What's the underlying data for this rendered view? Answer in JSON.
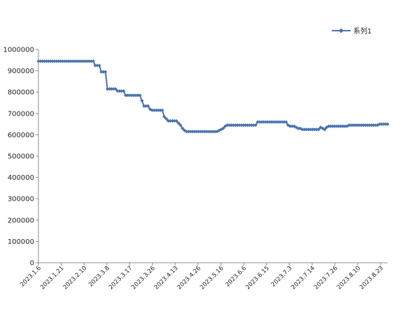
{
  "chart_data": {
    "type": "line",
    "title": "",
    "xlabel": "",
    "ylabel": "",
    "ylim": [
      0,
      1000000
    ],
    "yticks": [
      0,
      100000,
      200000,
      300000,
      400000,
      500000,
      600000,
      700000,
      800000,
      900000,
      1000000
    ],
    "ytick_labels": [
      "0",
      "100000",
      "200000",
      "300000",
      "400000",
      "500000",
      "600000",
      "700000",
      "800000",
      "900000",
      "1000000"
    ],
    "xtick_labels": [
      "2023.1.6",
      "2023.1.21",
      "2023.2.10",
      "2023.3.8",
      "2023.3.17",
      "2023.3.26",
      "2023.4.13",
      "2023.4.26",
      "2023.5.16",
      "2023.6.6",
      "2023.6.15",
      "2023.7.3",
      "2023.7.14",
      "2023.7.26",
      "2023.8.10",
      "2023.8.23"
    ],
    "grid": false,
    "legend_position": "top-right",
    "color": "#4a72b0",
    "series": [
      {
        "name": "系列1",
        "values": [
          945000,
          945000,
          945000,
          945000,
          945000,
          945000,
          945000,
          945000,
          945000,
          945000,
          945000,
          945000,
          945000,
          945000,
          945000,
          945000,
          945000,
          945000,
          945000,
          945000,
          945000,
          945000,
          945000,
          945000,
          945000,
          945000,
          945000,
          945000,
          925000,
          925000,
          925000,
          895000,
          895000,
          895000,
          815000,
          815000,
          815000,
          815000,
          815000,
          805000,
          805000,
          805000,
          805000,
          785000,
          785000,
          785000,
          785000,
          785000,
          785000,
          785000,
          785000,
          760000,
          735000,
          735000,
          735000,
          720000,
          715000,
          715000,
          715000,
          715000,
          715000,
          715000,
          685000,
          675000,
          665000,
          665000,
          665000,
          665000,
          665000,
          655000,
          645000,
          630000,
          620000,
          615000,
          615000,
          615000,
          615000,
          615000,
          615000,
          615000,
          615000,
          615000,
          615000,
          615000,
          615000,
          615000,
          615000,
          615000,
          615000,
          620000,
          625000,
          630000,
          640000,
          645000,
          645000,
          645000,
          645000,
          645000,
          645000,
          645000,
          645000,
          645000,
          645000,
          645000,
          645000,
          645000,
          645000,
          645000,
          660000,
          660000,
          660000,
          660000,
          660000,
          660000,
          660000,
          660000,
          660000,
          660000,
          660000,
          660000,
          660000,
          660000,
          660000,
          645000,
          640000,
          640000,
          640000,
          635000,
          630000,
          630000,
          625000,
          625000,
          625000,
          625000,
          625000,
          625000,
          625000,
          625000,
          625000,
          635000,
          630000,
          625000,
          635000,
          640000,
          640000,
          640000,
          640000,
          640000,
          640000,
          640000,
          640000,
          640000,
          640000,
          645000,
          645000,
          645000,
          645000,
          645000,
          645000,
          645000,
          645000,
          645000,
          645000,
          645000,
          645000,
          645000,
          645000,
          645000,
          650000,
          650000,
          650000,
          650000,
          650000
        ]
      }
    ]
  }
}
